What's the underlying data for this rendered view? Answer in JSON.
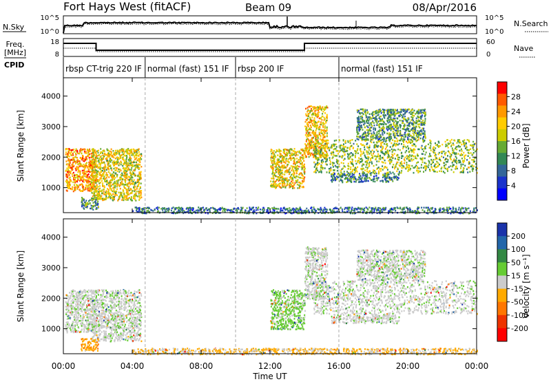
{
  "header": {
    "station": "Fort Hays West (fitACF)",
    "beam": "Beam 09",
    "date": "08/Apr/2016"
  },
  "noise_panel": {
    "left_label": "N.Sky",
    "right_label": "N.Search",
    "left_ticks": [
      "10^5",
      "10^0"
    ],
    "right_ticks": [
      "10^5",
      "10^0"
    ]
  },
  "freq_panel": {
    "left_label_1": "Freq.",
    "left_label_2": "[MHz]",
    "right_label": "Nave",
    "left_ticks": [
      "18",
      "8"
    ],
    "right_ticks": [
      "60",
      "0"
    ]
  },
  "cpid": {
    "label": "CPID",
    "segments": [
      {
        "text": "rbsp CT-trig 220 IF",
        "start_hour": 0.0
      },
      {
        "text": "normal (fast) 151 IF",
        "start_hour": 4.75
      },
      {
        "text": "rbsp 200 IF",
        "start_hour": 10.0
      },
      {
        "text": "normal (fast) 151 IF",
        "start_hour": 16.0
      }
    ]
  },
  "power_panel": {
    "ylabel": "Slant Range [km]",
    "colorbar_label": "Power [dB]",
    "colorbar_ticks": [
      "28",
      "24",
      "20",
      "16",
      "12",
      "8",
      "4"
    ],
    "colors": [
      "#ff0000",
      "#ff5a00",
      "#ff9900",
      "#ffcc00",
      "#cccc00",
      "#66aa33",
      "#338855",
      "#336699",
      "#1a33cc",
      "#0000ff"
    ]
  },
  "velocity_panel": {
    "ylabel": "Slant Range [km]",
    "colorbar_label": "Velocity [m s⁻¹]",
    "colorbar_ticks": [
      "200",
      "100",
      "50",
      "15",
      "-15",
      "-50",
      "-100",
      "-200"
    ],
    "colors": [
      "#1a33aa",
      "#2266aa",
      "#338844",
      "#66cc33",
      "#cccccc",
      "#ffaa00",
      "#ff7700",
      "#ee3300",
      "#ff0000"
    ]
  },
  "chart_data": {
    "type": "heatmap",
    "xlabel": "Time UT",
    "x_ticks": [
      "00:00",
      "04:00",
      "08:00",
      "12:00",
      "16:00",
      "20:00",
      "00:00"
    ],
    "x_range_hours": [
      0,
      24
    ],
    "y_ticks_km": [
      1000,
      2000,
      3000,
      4000
    ],
    "y_range_km": [
      180,
      4600
    ],
    "series": [
      {
        "name": "Power [dB]",
        "scale": [
          0,
          30
        ]
      },
      {
        "name": "Velocity [m s⁻¹]",
        "scale": [
          -200,
          200
        ]
      }
    ],
    "echo_regions": [
      {
        "t0": 0.1,
        "t1": 1.9,
        "r0": 900,
        "r1": 2300,
        "power": 23,
        "velocity": 5
      },
      {
        "t0": 1.6,
        "t1": 4.5,
        "r0": 600,
        "r1": 2300,
        "power": 18,
        "velocity": 5
      },
      {
        "t0": 1.0,
        "t1": 2.0,
        "r0": 300,
        "r1": 700,
        "power": 10,
        "velocity": -60
      },
      {
        "t0": 12.0,
        "t1": 14.0,
        "r0": 1000,
        "r1": 2300,
        "power": 19,
        "velocity": 40
      },
      {
        "t0": 14.0,
        "t1": 15.3,
        "r0": 2000,
        "r1": 3700,
        "power": 20,
        "velocity": 5
      },
      {
        "t0": 14.5,
        "t1": 24.0,
        "r0": 1500,
        "r1": 2600,
        "power": 15,
        "velocity": 5
      },
      {
        "t0": 17.0,
        "t1": 21.0,
        "r0": 2600,
        "r1": 3600,
        "power": 11,
        "velocity": 5
      },
      {
        "t0": 15.5,
        "t1": 19.5,
        "r0": 1200,
        "r1": 1500,
        "power": 9,
        "velocity": 5
      },
      {
        "t0": 4.0,
        "t1": 24.0,
        "r0": 180,
        "r1": 380,
        "power": 8,
        "velocity": -30
      }
    ]
  }
}
